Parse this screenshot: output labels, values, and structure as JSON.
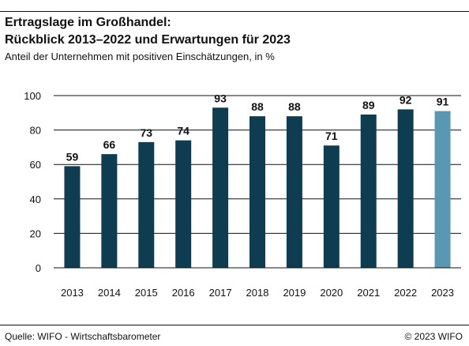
{
  "header": {
    "title_line1": "Ertragslage im Großhandel:",
    "title_line2": "Rückblick 2013–2022 und Erwartungen für 2023",
    "subtitle": "Anteil der Unternehmen mit positiven Einschätzungen, in %"
  },
  "footer": {
    "source": "Quelle: WIFO - Wirtschaftsbarometer",
    "copyright": "© 2023 WIFO"
  },
  "colors": {
    "actual": "#0e3d52",
    "expectation": "#5a97b2",
    "gridline": "#111111"
  },
  "chart_data": {
    "type": "bar",
    "categories": [
      "2013",
      "2014",
      "2015",
      "2016",
      "2017",
      "2018",
      "2019",
      "2020",
      "2021",
      "2022",
      "2023"
    ],
    "values": [
      59,
      66,
      73,
      74,
      93,
      88,
      88,
      71,
      89,
      92,
      91
    ],
    "highlight_category": "2023",
    "ylim": [
      0,
      100
    ],
    "yticks": [
      0,
      20,
      40,
      60,
      80,
      100
    ],
    "grid": true,
    "xlabel": "",
    "ylabel": ""
  }
}
